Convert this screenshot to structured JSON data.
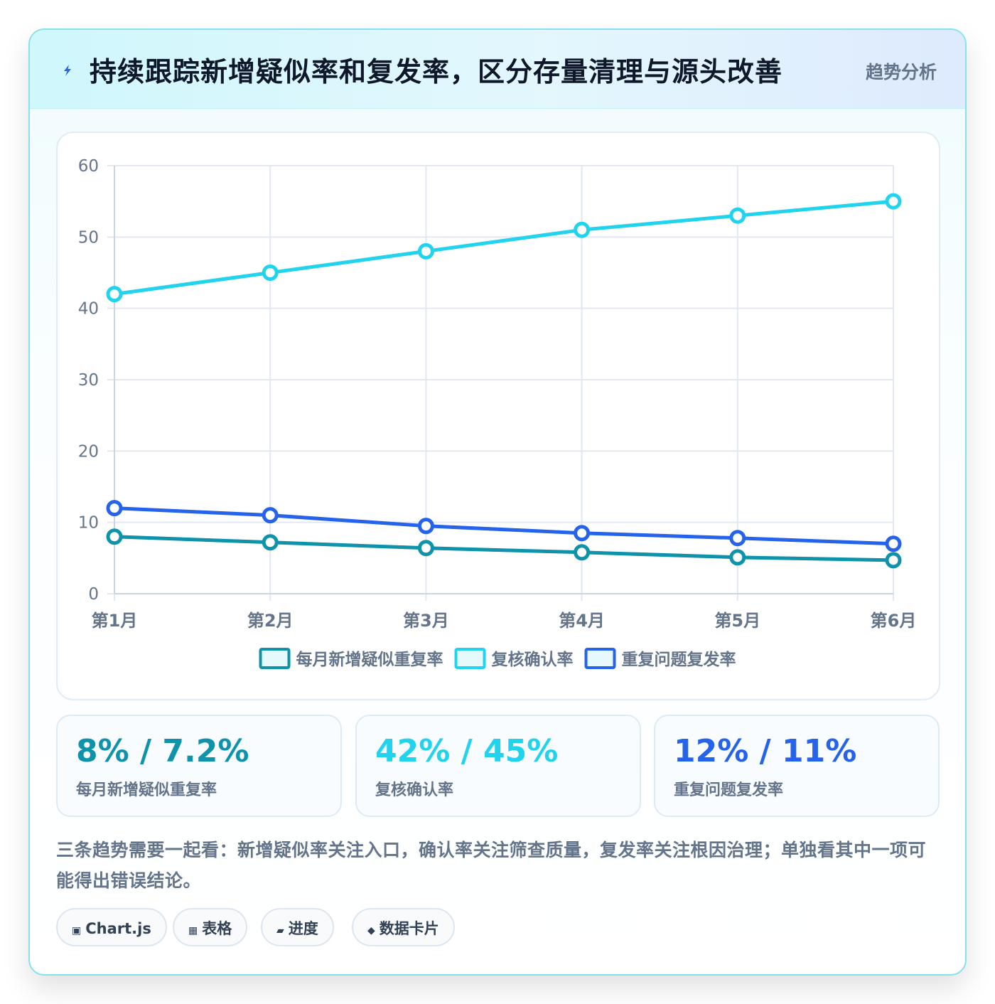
{
  "header": {
    "title": "持续跟踪新增疑似率和复发率，区分存量清理与源头改善",
    "tag": "趋势分析",
    "icon": "lightning-icon"
  },
  "chart_data": {
    "type": "line",
    "categories": [
      "第1月",
      "第2月",
      "第3月",
      "第4月",
      "第5月",
      "第6月"
    ],
    "series": [
      {
        "name": "每月新增疑似重复率",
        "values": [
          8,
          7.2,
          6.4,
          5.8,
          5.1,
          4.7
        ],
        "color": "#0e93ab"
      },
      {
        "name": "复核确认率",
        "values": [
          42,
          45,
          48,
          51,
          53,
          55
        ],
        "color": "#22d3ee"
      },
      {
        "name": "重复问题复发率",
        "values": [
          12,
          11,
          9.5,
          8.5,
          7.8,
          7
        ],
        "color": "#2563eb"
      }
    ],
    "ylim": [
      0,
      60
    ],
    "yticks": [
      0,
      10,
      20,
      30,
      40,
      50,
      60
    ],
    "grid": true,
    "legend": "bottom"
  },
  "stats": [
    {
      "value": "8% / 7.2%",
      "label": "每月新增疑似重复率",
      "color": "#0e93ab"
    },
    {
      "value": "42% / 45%",
      "label": "复核确认率",
      "color": "#22d3ee"
    },
    {
      "value": "12% / 11%",
      "label": "重复问题复发率",
      "color": "#2563eb"
    }
  ],
  "note": "三条趋势需要一起看：新增疑似率关注入口，确认率关注筛查质量，复发率关注根因治理；单独看其中一项可能得出错误结论。",
  "chips": [
    {
      "icon": "▣",
      "label": "Chart.js"
    },
    {
      "icon": "▦",
      "label": "表格"
    },
    {
      "icon": "▰",
      "label": "进度"
    },
    {
      "icon": "◆",
      "label": "数据卡片"
    }
  ]
}
